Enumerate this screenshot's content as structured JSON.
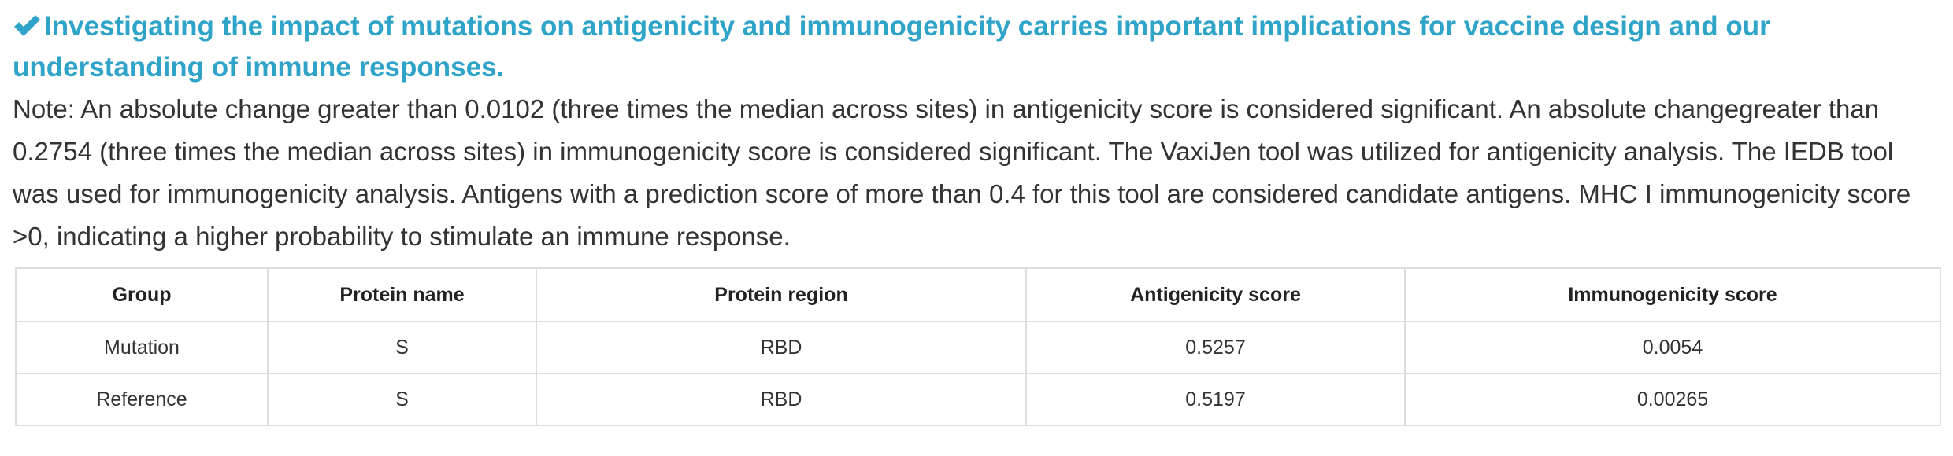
{
  "header": {
    "title": "Investigating the impact of mutations on antigenicity and immunogenicity carries important implications for vaccine design and our understanding of immune responses."
  },
  "note": "Note: An absolute change greater than 0.0102 (three times the median across sites) in antigenicity score is considered significant. An absolute changegreater than 0.2754 (three times the median across sites) in immunogenicity score is considered significant. The VaxiJen tool was utilized for antigenicity analysis. The IEDB tool was used for immunogenicity analysis. Antigens with a prediction score of more than 0.4 for this tool are considered candidate antigens. MHC I immunogenicity score >0, indicating a higher probability to stimulate an immune response.",
  "table": {
    "columns": [
      "Group",
      "Protein name",
      "Protein region",
      "Antigenicity score",
      "Immunogenicity score"
    ],
    "rows": [
      [
        "Mutation",
        "S",
        "RBD",
        "0.5257",
        "0.0054"
      ],
      [
        "Reference",
        "S",
        "RBD",
        "0.5197",
        "0.00265"
      ]
    ]
  }
}
